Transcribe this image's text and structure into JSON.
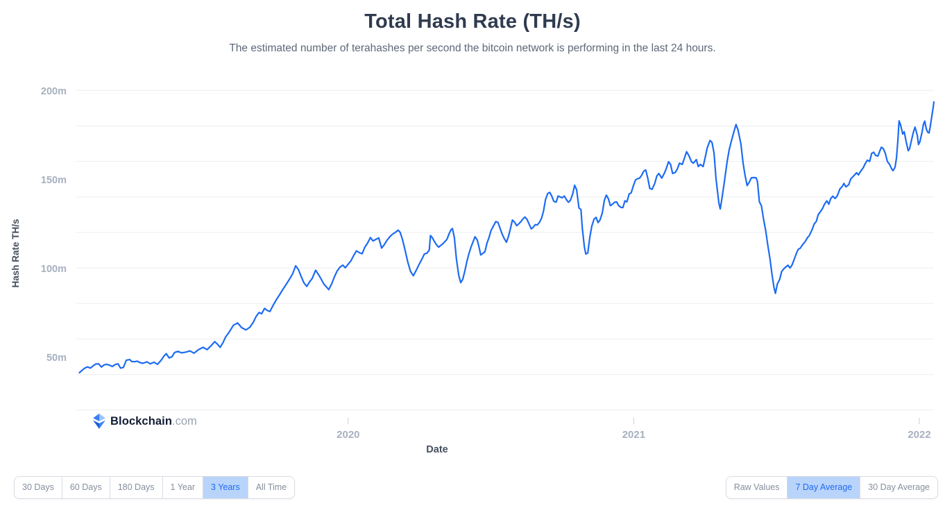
{
  "header": {
    "title": "Total Hash Rate (TH/s)",
    "subtitle": "The estimated number of terahashes per second the bitcoin network is performing in the last 24 hours."
  },
  "y_axis": {
    "title": "Hash Rate TH/s",
    "tick_labels": [
      "50m",
      "100m",
      "150m",
      "200m"
    ],
    "tick_values": [
      50,
      100,
      150,
      200
    ]
  },
  "x_axis": {
    "title": "Date",
    "tick_labels": [
      "2020",
      "2021",
      "2022"
    ],
    "tick_values": [
      2020,
      2021,
      2022
    ]
  },
  "logo": {
    "icon": "blockchain-diamond-icon",
    "brand": "Blockchain",
    "suffix": ".com"
  },
  "controls": {
    "range_buttons": [
      {
        "label": "30 Days",
        "active": false
      },
      {
        "label": "60 Days",
        "active": false
      },
      {
        "label": "180 Days",
        "active": false
      },
      {
        "label": "1 Year",
        "active": false
      },
      {
        "label": "3 Years",
        "active": true
      },
      {
        "label": "All Time",
        "active": false
      }
    ],
    "series_buttons": [
      {
        "label": "Raw Values",
        "active": false
      },
      {
        "label": "7 Day Average",
        "active": true
      },
      {
        "label": "30 Day Average",
        "active": false
      }
    ]
  },
  "colors": {
    "line": "#1c6bf2",
    "grid": "#ebedf0",
    "tick": "#c9cdd5",
    "active_button_bg": "#b9d4fb",
    "active_button_text": "#1e6bf0",
    "title_text": "#2f3b4f",
    "subtitle_text": "#5d6879",
    "axis_label_text": "#a7b0bf",
    "axis_title_text": "#454f5e",
    "brand_navy": "#121d33",
    "brand_blue": "#0c6cf2"
  },
  "chart_data": {
    "type": "line",
    "title": "Total Hash Rate (TH/s)",
    "xlabel": "Date",
    "ylabel": "Hash Rate TH/s",
    "unit": "m TH/s (millions of terahashes per second, 7 day average)",
    "xlim": [
      2019.048,
      2022.051
    ],
    "ylim": [
      16,
      204
    ],
    "grid_start": 20,
    "grid_interval": 20,
    "legend": "none",
    "grid": "horizontal",
    "points": [
      [
        2019.059,
        41.0
      ],
      [
        2019.068,
        42.3
      ],
      [
        2019.077,
        43.5
      ],
      [
        2019.087,
        44.3
      ],
      [
        2019.097,
        43.6
      ],
      [
        2019.107,
        44.8
      ],
      [
        2019.116,
        45.9
      ],
      [
        2019.126,
        46.0
      ],
      [
        2019.136,
        44.2
      ],
      [
        2019.145,
        45.4
      ],
      [
        2019.155,
        45.7
      ],
      [
        2019.165,
        45.2
      ],
      [
        2019.174,
        44.5
      ],
      [
        2019.184,
        45.6
      ],
      [
        2019.194,
        46.0
      ],
      [
        2019.203,
        43.6
      ],
      [
        2019.213,
        44.0
      ],
      [
        2019.223,
        48.0
      ],
      [
        2019.235,
        48.4
      ],
      [
        2019.242,
        47.3
      ],
      [
        2019.252,
        47.2
      ],
      [
        2019.261,
        47.5
      ],
      [
        2019.271,
        46.7
      ],
      [
        2019.281,
        46.3
      ],
      [
        2019.295,
        47.1
      ],
      [
        2019.307,
        46.0
      ],
      [
        2019.32,
        46.9
      ],
      [
        2019.332,
        45.7
      ],
      [
        2019.344,
        47.8
      ],
      [
        2019.356,
        50.6
      ],
      [
        2019.363,
        51.7
      ],
      [
        2019.373,
        49.3
      ],
      [
        2019.383,
        50.0
      ],
      [
        2019.392,
        52.4
      ],
      [
        2019.404,
        53.0
      ],
      [
        2019.416,
        52.2
      ],
      [
        2019.431,
        52.6
      ],
      [
        2019.446,
        53.3
      ],
      [
        2019.46,
        52.0
      ],
      [
        2019.477,
        54.1
      ],
      [
        2019.492,
        55.3
      ],
      [
        2019.506,
        54.0
      ],
      [
        2019.521,
        56.4
      ],
      [
        2019.533,
        58.5
      ],
      [
        2019.542,
        57.1
      ],
      [
        2019.552,
        55.3
      ],
      [
        2019.562,
        58.1
      ],
      [
        2019.571,
        61.2
      ],
      [
        2019.583,
        63.8
      ],
      [
        2019.598,
        67.7
      ],
      [
        2019.613,
        69.0
      ],
      [
        2019.627,
        66.4
      ],
      [
        2019.642,
        65.1
      ],
      [
        2019.656,
        66.6
      ],
      [
        2019.668,
        69.5
      ],
      [
        2019.678,
        72.8
      ],
      [
        2019.688,
        74.9
      ],
      [
        2019.697,
        74.2
      ],
      [
        2019.707,
        77.2
      ],
      [
        2019.717,
        76.0
      ],
      [
        2019.726,
        75.5
      ],
      [
        2019.736,
        78.6
      ],
      [
        2019.748,
        82.0
      ],
      [
        2019.76,
        85.0
      ],
      [
        2019.772,
        88.1
      ],
      [
        2019.784,
        91.0
      ],
      [
        2019.796,
        94.1
      ],
      [
        2019.806,
        96.9
      ],
      [
        2019.816,
        101.2
      ],
      [
        2019.826,
        99.0
      ],
      [
        2019.835,
        95.3
      ],
      [
        2019.845,
        91.6
      ],
      [
        2019.855,
        89.6
      ],
      [
        2019.864,
        92.0
      ],
      [
        2019.874,
        94.1
      ],
      [
        2019.886,
        98.7
      ],
      [
        2019.896,
        96.3
      ],
      [
        2019.906,
        93.6
      ],
      [
        2019.915,
        90.9
      ],
      [
        2019.925,
        89.1
      ],
      [
        2019.932,
        87.8
      ],
      [
        2019.942,
        91.0
      ],
      [
        2019.952,
        95.1
      ],
      [
        2019.961,
        98.2
      ],
      [
        2019.971,
        100.4
      ],
      [
        2019.981,
        101.6
      ],
      [
        2019.99,
        100.1
      ],
      [
        2020.0,
        102.1
      ],
      [
        2020.01,
        104.1
      ],
      [
        2020.019,
        107.0
      ],
      [
        2020.029,
        109.6
      ],
      [
        2020.039,
        108.6
      ],
      [
        2020.049,
        108.0
      ],
      [
        2020.058,
        111.6
      ],
      [
        2020.068,
        114.0
      ],
      [
        2020.078,
        117.1
      ],
      [
        2020.087,
        115.2
      ],
      [
        2020.097,
        116.1
      ],
      [
        2020.107,
        116.9
      ],
      [
        2020.117,
        111.2
      ],
      [
        2020.126,
        113.0
      ],
      [
        2020.136,
        115.6
      ],
      [
        2020.146,
        117.6
      ],
      [
        2020.155,
        119.0
      ],
      [
        2020.165,
        120.0
      ],
      [
        2020.175,
        121.3
      ],
      [
        2020.182,
        120.1
      ],
      [
        2020.19,
        116.1
      ],
      [
        2020.199,
        110.2
      ],
      [
        2020.209,
        103.1
      ],
      [
        2020.218,
        98.1
      ],
      [
        2020.228,
        95.6
      ],
      [
        2020.238,
        98.6
      ],
      [
        2020.247,
        101.6
      ],
      [
        2020.257,
        104.6
      ],
      [
        2020.267,
        107.9
      ],
      [
        2020.276,
        108.3
      ],
      [
        2020.284,
        110.1
      ],
      [
        2020.288,
        118.3
      ],
      [
        2020.295,
        116.9
      ],
      [
        2020.303,
        114.6
      ],
      [
        2020.31,
        112.9
      ],
      [
        2020.317,
        111.7
      ],
      [
        2020.324,
        112.7
      ],
      [
        2020.332,
        113.7
      ],
      [
        2020.346,
        116.1
      ],
      [
        2020.353,
        119.1
      ],
      [
        2020.36,
        121.5
      ],
      [
        2020.365,
        122.2
      ],
      [
        2020.372,
        117.0
      ],
      [
        2020.379,
        105.1
      ],
      [
        2020.387,
        96.0
      ],
      [
        2020.394,
        91.7
      ],
      [
        2020.401,
        93.5
      ],
      [
        2020.408,
        98.0
      ],
      [
        2020.416,
        104.0
      ],
      [
        2020.423,
        108.1
      ],
      [
        2020.43,
        111.7
      ],
      [
        2020.437,
        114.6
      ],
      [
        2020.444,
        117.6
      ],
      [
        2020.452,
        115.7
      ],
      [
        2020.459,
        111.1
      ],
      [
        2020.464,
        107.3
      ],
      [
        2020.471,
        108.1
      ],
      [
        2020.479,
        109.2
      ],
      [
        2020.486,
        114.0
      ],
      [
        2020.493,
        117.0
      ],
      [
        2020.5,
        121.0
      ],
      [
        2020.51,
        124.0
      ],
      [
        2020.517,
        126.1
      ],
      [
        2020.525,
        125.5
      ],
      [
        2020.532,
        122.2
      ],
      [
        2020.539,
        119.1
      ],
      [
        2020.546,
        116.6
      ],
      [
        2020.554,
        114.5
      ],
      [
        2020.561,
        117.6
      ],
      [
        2020.568,
        122.0
      ],
      [
        2020.575,
        127.0
      ],
      [
        2020.583,
        125.7
      ],
      [
        2020.59,
        123.8
      ],
      [
        2020.597,
        124.8
      ],
      [
        2020.605,
        126.1
      ],
      [
        2020.612,
        127.6
      ],
      [
        2020.619,
        128.7
      ],
      [
        2020.626,
        127.4
      ],
      [
        2020.633,
        124.9
      ],
      [
        2020.641,
        122.0
      ],
      [
        2020.648,
        122.9
      ],
      [
        2020.655,
        124.4
      ],
      [
        2020.662,
        124.2
      ],
      [
        2020.67,
        125.7
      ],
      [
        2020.677,
        128.0
      ],
      [
        2020.684,
        132.1
      ],
      [
        2020.691,
        138.5
      ],
      [
        2020.699,
        142.0
      ],
      [
        2020.706,
        142.5
      ],
      [
        2020.713,
        140.4
      ],
      [
        2020.72,
        137.5
      ],
      [
        2020.728,
        137.0
      ],
      [
        2020.735,
        140.5
      ],
      [
        2020.742,
        140.0
      ],
      [
        2020.749,
        139.5
      ],
      [
        2020.757,
        140.5
      ],
      [
        2020.764,
        138.5
      ],
      [
        2020.771,
        137.0
      ],
      [
        2020.778,
        138.0
      ],
      [
        2020.786,
        141.5
      ],
      [
        2020.793,
        146.6
      ],
      [
        2020.8,
        144.0
      ],
      [
        2020.808,
        133.8
      ],
      [
        2020.815,
        132.9
      ],
      [
        2020.82,
        122.2
      ],
      [
        2020.827,
        112.0
      ],
      [
        2020.832,
        107.8
      ],
      [
        2020.839,
        108.5
      ],
      [
        2020.846,
        117.0
      ],
      [
        2020.853,
        123.5
      ],
      [
        2020.861,
        127.5
      ],
      [
        2020.868,
        128.5
      ],
      [
        2020.875,
        125.5
      ],
      [
        2020.882,
        127.1
      ],
      [
        2020.89,
        131.0
      ],
      [
        2020.897,
        138.0
      ],
      [
        2020.904,
        141.0
      ],
      [
        2020.911,
        139.0
      ],
      [
        2020.918,
        135.1
      ],
      [
        2020.926,
        136.0
      ],
      [
        2020.933,
        137.0
      ],
      [
        2020.94,
        137.2
      ],
      [
        2020.947,
        135.1
      ],
      [
        2020.955,
        134.1
      ],
      [
        2020.962,
        134.0
      ],
      [
        2020.969,
        137.8
      ],
      [
        2020.976,
        137.2
      ],
      [
        2020.984,
        141.7
      ],
      [
        2020.991,
        142.3
      ],
      [
        2020.998,
        146.0
      ],
      [
        2021.006,
        149.5
      ],
      [
        2021.013,
        150.3
      ],
      [
        2021.02,
        150.5
      ],
      [
        2021.027,
        152.0
      ],
      [
        2021.035,
        154.5
      ],
      [
        2021.042,
        155.2
      ],
      [
        2021.049,
        150.6
      ],
      [
        2021.056,
        144.8
      ],
      [
        2021.064,
        144.3
      ],
      [
        2021.073,
        147.4
      ],
      [
        2021.081,
        151.9
      ],
      [
        2021.088,
        153.2
      ],
      [
        2021.098,
        150.6
      ],
      [
        2021.105,
        152.6
      ],
      [
        2021.112,
        155.2
      ],
      [
        2021.122,
        159.8
      ],
      [
        2021.129,
        158.3
      ],
      [
        2021.136,
        153.2
      ],
      [
        2021.146,
        153.9
      ],
      [
        2021.153,
        155.9
      ],
      [
        2021.16,
        159.0
      ],
      [
        2021.17,
        158.3
      ],
      [
        2021.177,
        161.7
      ],
      [
        2021.185,
        165.5
      ],
      [
        2021.194,
        162.9
      ],
      [
        2021.202,
        159.8
      ],
      [
        2021.209,
        159.0
      ],
      [
        2021.219,
        161.0
      ],
      [
        2021.226,
        157.1
      ],
      [
        2021.233,
        158.3
      ],
      [
        2021.243,
        157.1
      ],
      [
        2021.25,
        162.1
      ],
      [
        2021.257,
        167.5
      ],
      [
        2021.267,
        171.8
      ],
      [
        2021.274,
        170.7
      ],
      [
        2021.281,
        164.8
      ],
      [
        2021.288,
        150.1
      ],
      [
        2021.298,
        136.5
      ],
      [
        2021.303,
        133.2
      ],
      [
        2021.31,
        140.4
      ],
      [
        2021.317,
        148.2
      ],
      [
        2021.327,
        159.9
      ],
      [
        2021.334,
        166.4
      ],
      [
        2021.341,
        171.0
      ],
      [
        2021.351,
        176.9
      ],
      [
        2021.358,
        180.8
      ],
      [
        2021.365,
        177.7
      ],
      [
        2021.375,
        169.9
      ],
      [
        2021.383,
        158.7
      ],
      [
        2021.39,
        152.0
      ],
      [
        2021.397,
        146.4
      ],
      [
        2021.404,
        148.2
      ],
      [
        2021.412,
        150.8
      ],
      [
        2021.421,
        150.9
      ],
      [
        2021.428,
        150.8
      ],
      [
        2021.433,
        148.9
      ],
      [
        2021.44,
        137.2
      ],
      [
        2021.447,
        135.0
      ],
      [
        2021.455,
        127.0
      ],
      [
        2021.462,
        121.0
      ],
      [
        2021.469,
        113.1
      ],
      [
        2021.477,
        105.3
      ],
      [
        2021.484,
        96.5
      ],
      [
        2021.491,
        89.0
      ],
      [
        2021.496,
        85.7
      ],
      [
        2021.503,
        91.0
      ],
      [
        2021.511,
        93.5
      ],
      [
        2021.518,
        98.0
      ],
      [
        2021.525,
        99.4
      ],
      [
        2021.532,
        100.5
      ],
      [
        2021.54,
        101.5
      ],
      [
        2021.547,
        100.0
      ],
      [
        2021.554,
        101.5
      ],
      [
        2021.561,
        104.5
      ],
      [
        2021.569,
        108.0
      ],
      [
        2021.576,
        110.5
      ],
      [
        2021.583,
        111.1
      ],
      [
        2021.591,
        113.1
      ],
      [
        2021.6,
        114.8
      ],
      [
        2021.608,
        117.0
      ],
      [
        2021.615,
        118.3
      ],
      [
        2021.625,
        121.8
      ],
      [
        2021.632,
        124.8
      ],
      [
        2021.639,
        126.1
      ],
      [
        2021.646,
        130.0
      ],
      [
        2021.654,
        131.8
      ],
      [
        2021.661,
        133.5
      ],
      [
        2021.668,
        136.0
      ],
      [
        2021.676,
        137.8
      ],
      [
        2021.683,
        135.9
      ],
      [
        2021.69,
        139.1
      ],
      [
        2021.697,
        140.4
      ],
      [
        2021.705,
        139.1
      ],
      [
        2021.712,
        140.4
      ],
      [
        2021.722,
        144.5
      ],
      [
        2021.729,
        145.7
      ],
      [
        2021.736,
        147.6
      ],
      [
        2021.743,
        145.7
      ],
      [
        2021.753,
        146.9
      ],
      [
        2021.76,
        150.2
      ],
      [
        2021.77,
        151.8
      ],
      [
        2021.78,
        153.6
      ],
      [
        2021.787,
        152.4
      ],
      [
        2021.794,
        154.3
      ],
      [
        2021.804,
        156.5
      ],
      [
        2021.811,
        158.9
      ],
      [
        2021.818,
        160.7
      ],
      [
        2021.826,
        160.0
      ],
      [
        2021.833,
        164.5
      ],
      [
        2021.84,
        165.2
      ],
      [
        2021.847,
        163.4
      ],
      [
        2021.855,
        163.0
      ],
      [
        2021.862,
        166.0
      ],
      [
        2021.867,
        168.0
      ],
      [
        2021.874,
        167.2
      ],
      [
        2021.881,
        164.5
      ],
      [
        2021.888,
        160.0
      ],
      [
        2021.896,
        158.3
      ],
      [
        2021.903,
        155.8
      ],
      [
        2021.908,
        154.8
      ],
      [
        2021.915,
        156.7
      ],
      [
        2021.92,
        162.0
      ],
      [
        2021.925,
        172.0
      ],
      [
        2021.929,
        182.8
      ],
      [
        2021.934,
        180.8
      ],
      [
        2021.942,
        175.4
      ],
      [
        2021.947,
        176.7
      ],
      [
        2021.954,
        171.0
      ],
      [
        2021.961,
        166.0
      ],
      [
        2021.966,
        167.2
      ],
      [
        2021.973,
        172.3
      ],
      [
        2021.98,
        177.0
      ],
      [
        2021.985,
        179.3
      ],
      [
        2021.993,
        174.6
      ],
      [
        2021.997,
        169.5
      ],
      [
        2022.002,
        171.0
      ],
      [
        2022.01,
        176.7
      ],
      [
        2022.014,
        180.8
      ],
      [
        2022.019,
        182.7
      ],
      [
        2022.024,
        178.5
      ],
      [
        2022.029,
        176.5
      ],
      [
        2022.034,
        176.0
      ],
      [
        2022.038,
        179.3
      ],
      [
        2022.043,
        184.7
      ],
      [
        2022.048,
        190.0
      ],
      [
        2022.051,
        193.5
      ]
    ]
  }
}
